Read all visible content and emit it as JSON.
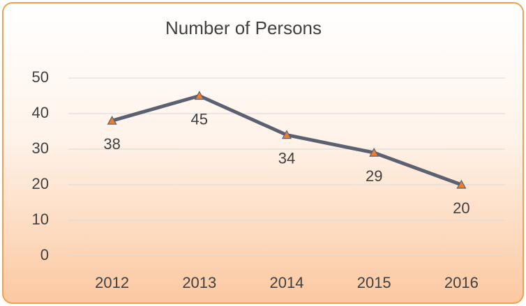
{
  "chart_data": {
    "type": "line",
    "title": "Number of Persons",
    "categories": [
      "2012",
      "2013",
      "2014",
      "2015",
      "2016"
    ],
    "values": [
      38,
      45,
      34,
      29,
      20
    ],
    "color": "#5b6170",
    "marker_color": "#ed7d31",
    "ylim": [
      0,
      50
    ],
    "yticks": [
      0,
      10,
      20,
      30,
      40,
      50
    ],
    "grid": true
  }
}
